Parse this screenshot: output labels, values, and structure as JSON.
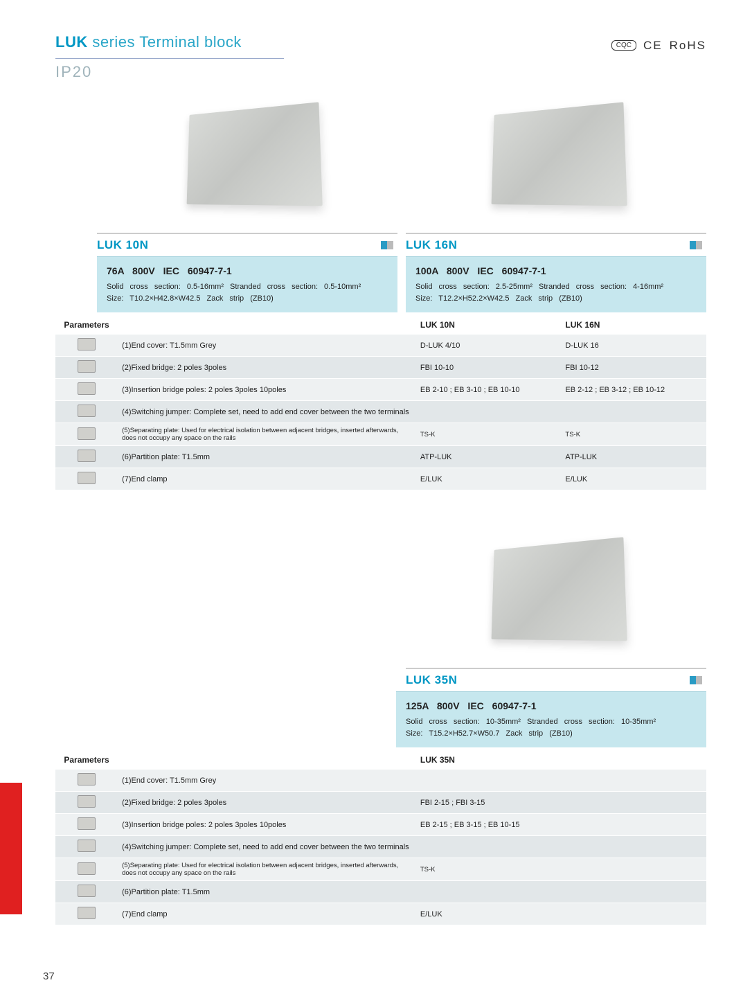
{
  "header": {
    "brand": "LUK",
    "rest": " series Terminal block",
    "ip": "IP20",
    "certs": [
      "CQC",
      "CE",
      "RoHS"
    ]
  },
  "colors": {
    "accent": "#0097c4",
    "spec_bg": "#c6e7ee",
    "row_alt1": "#eef1f2",
    "row_alt2": "#e2e7e9",
    "red_strip": "#e02020"
  },
  "section1": {
    "products": [
      {
        "name": "LUK 10N",
        "spec_main": "76A   800V   IEC 60947-7-1",
        "spec_sub1": "Solid cross section: 0.5-16mm²    Stranded cross section: 0.5-10mm²",
        "spec_sub2": "Size: T10.2×H42.8×W42.5   Zack strip (ZB10)"
      },
      {
        "name": "LUK 16N",
        "spec_main": "100A   800V   IEC 60947-7-1",
        "spec_sub1": "Solid cross section: 2.5-25mm²    Stranded cross section: 4-16mm²",
        "spec_sub2": "Size: T12.2×H52.2×W42.5   Zack strip (ZB10)"
      }
    ],
    "table": {
      "head": [
        "Parameters",
        "",
        "LUK 10N",
        "LUK 16N"
      ],
      "rows": [
        {
          "desc": "(1)End cover: T1.5mm   Grey",
          "c1": "D-LUK 4/10",
          "c2": "D-LUK 16"
        },
        {
          "desc": "(2)Fixed bridge: 2 poles  3poles",
          "c1": "FBI 10-10",
          "c2": "FBI 10-12"
        },
        {
          "desc": "(3)Insertion bridge poles: 2 poles  3poles  10poles",
          "c1": "EB 2-10 ;  EB 3-10 ;  EB 10-10",
          "c2": "EB 2-12 ;  EB 3-12 ;  EB 10-12"
        },
        {
          "desc": "(4)Switching jumper: Complete set, need to add end cover between the two terminals",
          "c1": "",
          "c2": ""
        },
        {
          "desc": "(5)Separating plate: Used for electrical isolation between adjacent bridges, inserted afterwards, does not occupy any space on the rails",
          "c1": "TS-K",
          "c2": "TS-K",
          "tiny": true
        },
        {
          "desc": "(6)Partition plate: T1.5mm",
          "c1": "ATP-LUK",
          "c2": "ATP-LUK"
        },
        {
          "desc": "(7)End clamp",
          "c1": "E/LUK",
          "c2": "E/LUK"
        }
      ]
    }
  },
  "section2": {
    "products": [
      {
        "name": "LUK 35N",
        "spec_main": "125A   800V   IEC 60947-7-1",
        "spec_sub1": "Solid cross section: 10-35mm²    Stranded cross section: 10-35mm²",
        "spec_sub2": "Size: T15.2×H52.7×W50.7   Zack strip (ZB10)"
      }
    ],
    "table": {
      "head": [
        "Parameters",
        "",
        "LUK 35N"
      ],
      "rows": [
        {
          "desc": "(1)End cover: T1.5mm   Grey",
          "c1": ""
        },
        {
          "desc": "(2)Fixed bridge: 2 poles  3poles",
          "c1": "FBI 2-15 ;  FBI 3-15"
        },
        {
          "desc": "(3)Insertion bridge poles: 2 poles  3poles  10poles",
          "c1": "EB 2-15 ;  EB 3-15 ;  EB 10-15"
        },
        {
          "desc": "(4)Switching jumper: Complete set, need to add end cover between the two terminals",
          "c1": ""
        },
        {
          "desc": "(5)Separating plate: Used for electrical isolation between adjacent bridges, inserted afterwards, does not occupy any space on the rails",
          "c1": "TS-K",
          "tiny": true
        },
        {
          "desc": "(6)Partition plate: T1.5mm",
          "c1": ""
        },
        {
          "desc": "(7)End clamp",
          "c1": "E/LUK"
        }
      ]
    }
  },
  "page_number": "37"
}
